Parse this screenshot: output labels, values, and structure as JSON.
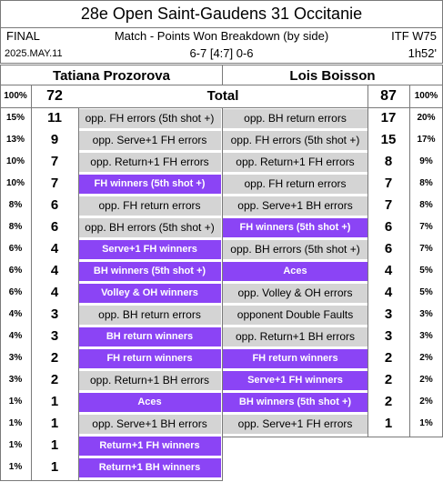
{
  "header": {
    "title": "28e Open Saint-Gaudens 31 Occitanie",
    "round": "FINAL",
    "subtitle": "Match - Points Won Breakdown (by side)",
    "level": "ITF W75",
    "date": "2025.MAY.11",
    "score": "6-7 [4:7]  0-6",
    "duration": "1h52'"
  },
  "players": {
    "left": "Tatiana Prozorova",
    "right": "Lois Boisson"
  },
  "total": {
    "left_pct": "100%",
    "left": "72",
    "label": "Total",
    "right": "87",
    "right_pct": "100%"
  },
  "left_rows": [
    {
      "pct": "15%",
      "n": "11",
      "label": "opp. FH errors (5th shot +)",
      "kind": "gray"
    },
    {
      "pct": "13%",
      "n": "9",
      "label": "opp. Serve+1 FH errors",
      "kind": "gray"
    },
    {
      "pct": "10%",
      "n": "7",
      "label": "opp. Return+1 FH errors",
      "kind": "gray"
    },
    {
      "pct": "10%",
      "n": "7",
      "label": "FH winners (5th shot +)",
      "kind": "purple"
    },
    {
      "pct": "8%",
      "n": "6",
      "label": "opp. FH return errors",
      "kind": "gray"
    },
    {
      "pct": "8%",
      "n": "6",
      "label": "opp. BH errors (5th shot +)",
      "kind": "gray"
    },
    {
      "pct": "6%",
      "n": "4",
      "label": "Serve+1 FH winners",
      "kind": "purple"
    },
    {
      "pct": "6%",
      "n": "4",
      "label": "BH winners (5th shot +)",
      "kind": "purple"
    },
    {
      "pct": "6%",
      "n": "4",
      "label": "Volley & OH winners",
      "kind": "purple"
    },
    {
      "pct": "4%",
      "n": "3",
      "label": "opp. BH return errors",
      "kind": "gray"
    },
    {
      "pct": "4%",
      "n": "3",
      "label": "BH return winners",
      "kind": "purple"
    },
    {
      "pct": "3%",
      "n": "2",
      "label": "FH return winners",
      "kind": "purple"
    },
    {
      "pct": "3%",
      "n": "2",
      "label": "opp. Return+1 BH errors",
      "kind": "gray"
    },
    {
      "pct": "1%",
      "n": "1",
      "label": "Aces",
      "kind": "purple"
    },
    {
      "pct": "1%",
      "n": "1",
      "label": "opp. Serve+1 BH errors",
      "kind": "gray"
    },
    {
      "pct": "1%",
      "n": "1",
      "label": "Return+1 FH winners",
      "kind": "purple"
    },
    {
      "pct": "1%",
      "n": "1",
      "label": "Return+1 BH winners",
      "kind": "purple"
    }
  ],
  "right_rows": [
    {
      "pct": "20%",
      "n": "17",
      "label": "opp. BH return errors",
      "kind": "gray"
    },
    {
      "pct": "17%",
      "n": "15",
      "label": "opp. FH errors (5th shot +)",
      "kind": "gray"
    },
    {
      "pct": "9%",
      "n": "8",
      "label": "opp. Return+1 FH errors",
      "kind": "gray"
    },
    {
      "pct": "8%",
      "n": "7",
      "label": "opp. FH return errors",
      "kind": "gray"
    },
    {
      "pct": "8%",
      "n": "7",
      "label": "opp. Serve+1 BH errors",
      "kind": "gray"
    },
    {
      "pct": "7%",
      "n": "6",
      "label": "FH winners (5th shot +)",
      "kind": "purple"
    },
    {
      "pct": "7%",
      "n": "6",
      "label": "opp. BH errors (5th shot +)",
      "kind": "gray"
    },
    {
      "pct": "5%",
      "n": "4",
      "label": "Aces",
      "kind": "purple"
    },
    {
      "pct": "5%",
      "n": "4",
      "label": "opp. Volley & OH errors",
      "kind": "gray"
    },
    {
      "pct": "3%",
      "n": "3",
      "label": "opponent Double Faults",
      "kind": "gray"
    },
    {
      "pct": "3%",
      "n": "3",
      "label": "opp. Return+1 BH errors",
      "kind": "gray"
    },
    {
      "pct": "2%",
      "n": "2",
      "label": "FH return winners",
      "kind": "purple"
    },
    {
      "pct": "2%",
      "n": "2",
      "label": "Serve+1 FH winners",
      "kind": "purple"
    },
    {
      "pct": "2%",
      "n": "2",
      "label": "BH winners (5th shot +)",
      "kind": "purple"
    },
    {
      "pct": "1%",
      "n": "1",
      "label": "opp. Serve+1 FH errors",
      "kind": "gray"
    }
  ],
  "colors": {
    "purple": "#8b44f5",
    "gray": "#d4d4d4",
    "border": "#7a7a7a"
  }
}
